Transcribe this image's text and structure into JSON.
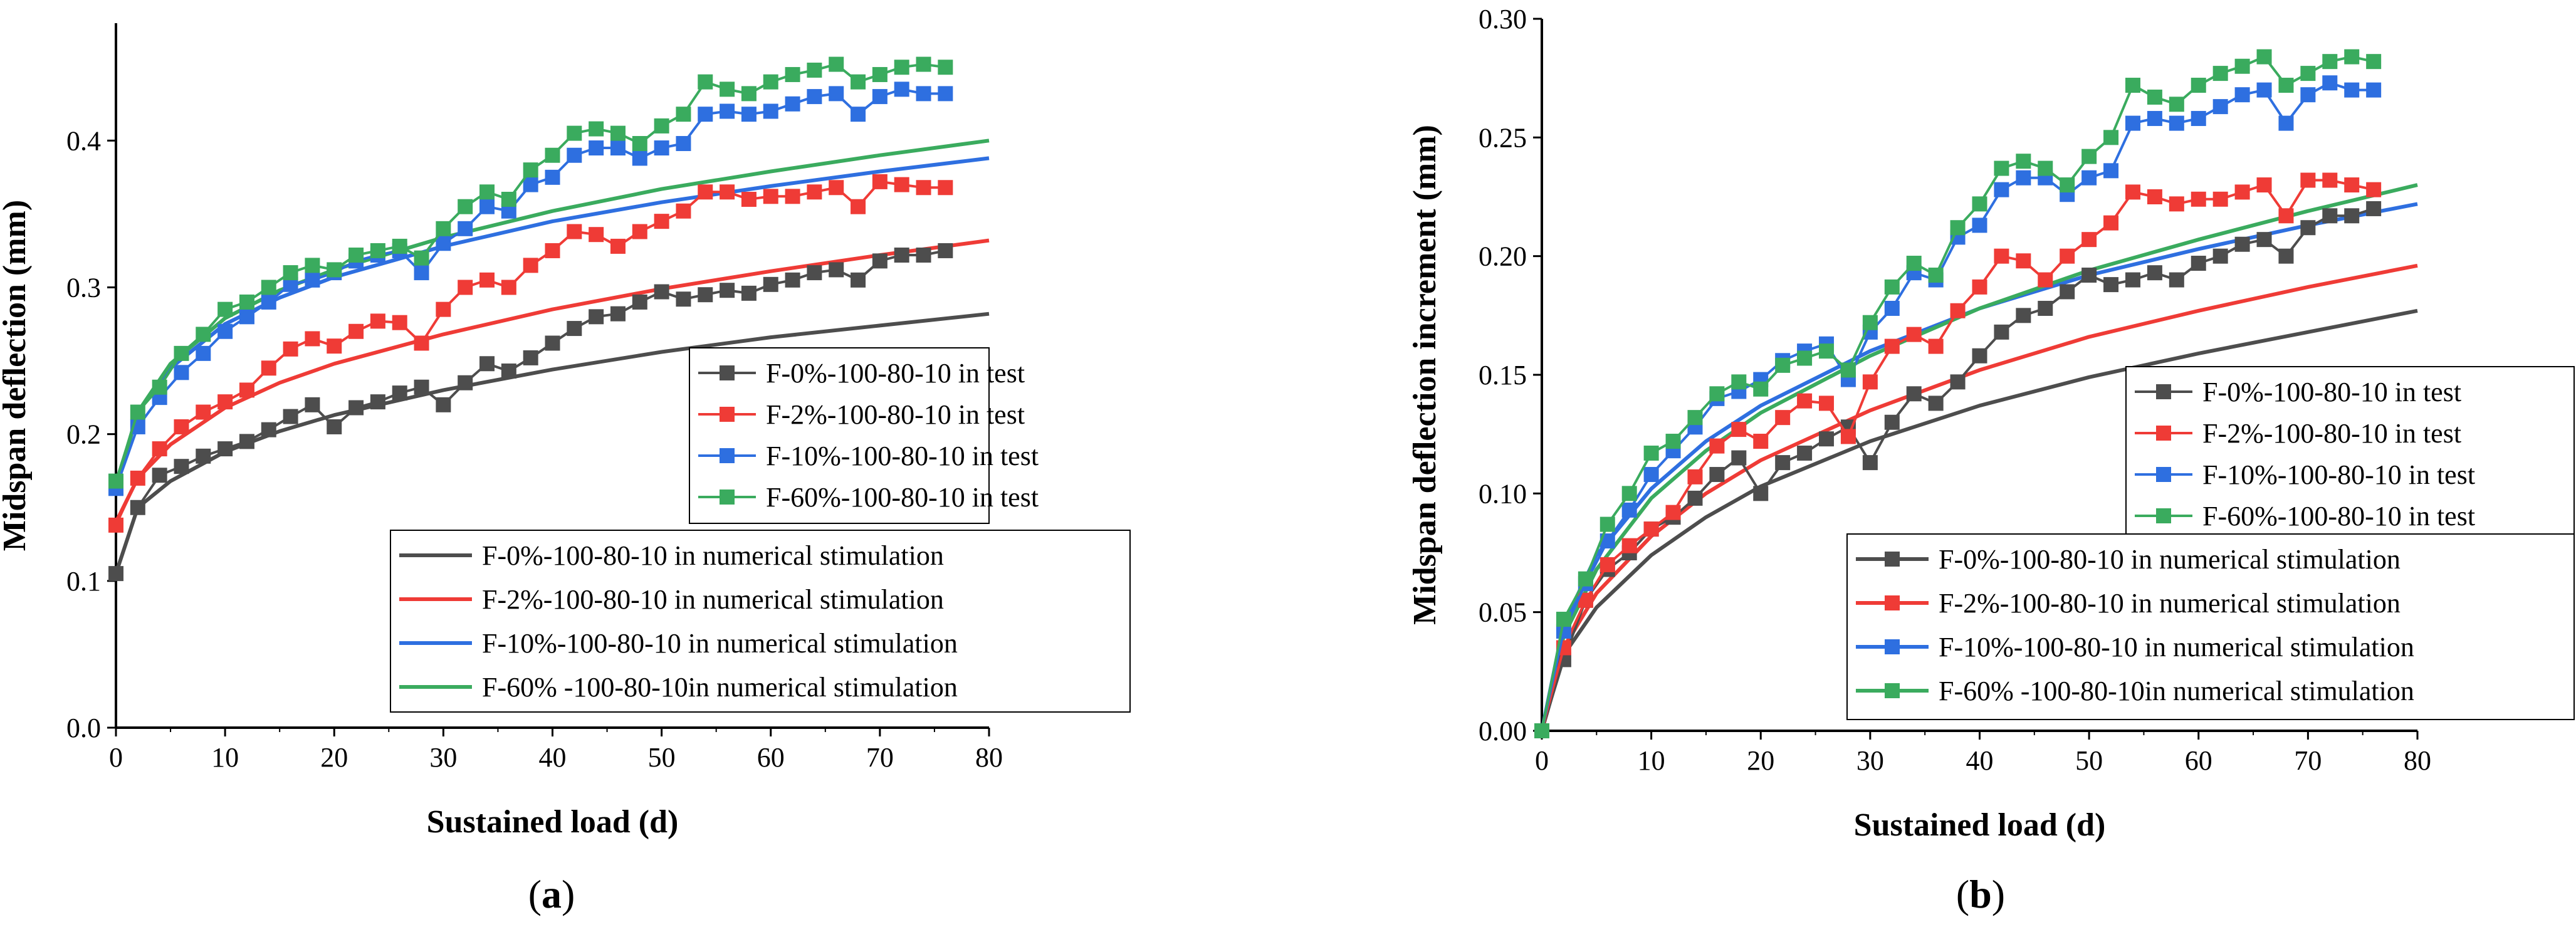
{
  "colors": {
    "F-0%": "#4d4d4d",
    "F-2%": "#ef3b36",
    "F-10%": "#2e6fe0",
    "F-60%": "#3aab5e"
  },
  "chart_data": [
    {
      "panel_label": "(a)",
      "panel_label_parts": [
        "(",
        "a",
        ")"
      ],
      "type": "scatter",
      "xlabel": "Sustained load  (d)",
      "ylabel": "Midspan deflection (mm)",
      "xlim": [
        0,
        80
      ],
      "ylim": [
        0,
        0.48
      ],
      "xticks": [
        0,
        10,
        20,
        30,
        40,
        50,
        60,
        70,
        80
      ],
      "xtick_labels": [
        "0",
        "10",
        "20",
        "30",
        "40",
        "50",
        "60",
        "70",
        "80"
      ],
      "yticks": [
        0.0,
        0.1,
        0.2,
        0.3,
        0.4
      ],
      "ytick_labels": [
        "0.0",
        "0.1",
        "0.2",
        "0.3",
        "0.4"
      ],
      "grid": false,
      "legend_test_placement": "right-middle",
      "legend_model_placement": "bottom-right",
      "test_series": [
        {
          "name": "F-0%-100-80-10 in test",
          "key": "F-0%",
          "marker": "square",
          "x": [
            0,
            2,
            4,
            6,
            8,
            10,
            12,
            14,
            16,
            18,
            20,
            22,
            24,
            26,
            28,
            30,
            32,
            34,
            36,
            38,
            40,
            42,
            44,
            46,
            48,
            50,
            52,
            54,
            56,
            58,
            60,
            62,
            64,
            66,
            68,
            70,
            72,
            74,
            76
          ],
          "y": [
            0.105,
            0.15,
            0.172,
            0.178,
            0.185,
            0.19,
            0.195,
            0.203,
            0.212,
            0.22,
            0.205,
            0.218,
            0.222,
            0.228,
            0.232,
            0.22,
            0.235,
            0.248,
            0.243,
            0.252,
            0.262,
            0.272,
            0.28,
            0.282,
            0.29,
            0.297,
            0.292,
            0.295,
            0.298,
            0.296,
            0.302,
            0.305,
            0.31,
            0.312,
            0.305,
            0.318,
            0.322,
            0.322,
            0.325
          ]
        },
        {
          "name": "F-2%-100-80-10 in test",
          "key": "F-2%",
          "marker": "square",
          "x": [
            0,
            2,
            4,
            6,
            8,
            10,
            12,
            14,
            16,
            18,
            20,
            22,
            24,
            26,
            28,
            30,
            32,
            34,
            36,
            38,
            40,
            42,
            44,
            46,
            48,
            50,
            52,
            54,
            56,
            58,
            60,
            62,
            64,
            66,
            68,
            70,
            72,
            74,
            76
          ],
          "y": [
            0.138,
            0.17,
            0.19,
            0.205,
            0.215,
            0.222,
            0.23,
            0.245,
            0.258,
            0.265,
            0.26,
            0.27,
            0.277,
            0.276,
            0.262,
            0.285,
            0.3,
            0.305,
            0.3,
            0.315,
            0.325,
            0.338,
            0.336,
            0.328,
            0.338,
            0.345,
            0.352,
            0.365,
            0.365,
            0.36,
            0.362,
            0.362,
            0.365,
            0.368,
            0.355,
            0.372,
            0.37,
            0.368,
            0.368
          ]
        },
        {
          "name": "F-10%-100-80-10 in test",
          "key": "F-10%",
          "marker": "square",
          "x": [
            0,
            2,
            4,
            6,
            8,
            10,
            12,
            14,
            16,
            18,
            20,
            22,
            24,
            26,
            28,
            30,
            32,
            34,
            36,
            38,
            40,
            42,
            44,
            46,
            48,
            50,
            52,
            54,
            56,
            58,
            60,
            62,
            64,
            66,
            68,
            70,
            72,
            74,
            76
          ],
          "y": [
            0.163,
            0.205,
            0.225,
            0.242,
            0.255,
            0.27,
            0.28,
            0.29,
            0.302,
            0.305,
            0.31,
            0.318,
            0.322,
            0.325,
            0.31,
            0.33,
            0.34,
            0.355,
            0.352,
            0.37,
            0.375,
            0.39,
            0.395,
            0.395,
            0.388,
            0.395,
            0.398,
            0.418,
            0.42,
            0.418,
            0.42,
            0.425,
            0.43,
            0.432,
            0.418,
            0.43,
            0.435,
            0.432,
            0.432
          ]
        },
        {
          "name": "F-60%-100-80-10 in test",
          "key": "F-60%",
          "marker": "square",
          "x": [
            0,
            2,
            4,
            6,
            8,
            10,
            12,
            14,
            16,
            18,
            20,
            22,
            24,
            26,
            28,
            30,
            32,
            34,
            36,
            38,
            40,
            42,
            44,
            46,
            48,
            50,
            52,
            54,
            56,
            58,
            60,
            62,
            64,
            66,
            68,
            70,
            72,
            74,
            76
          ],
          "y": [
            0.168,
            0.215,
            0.232,
            0.255,
            0.268,
            0.285,
            0.29,
            0.3,
            0.31,
            0.315,
            0.312,
            0.322,
            0.325,
            0.328,
            0.32,
            0.34,
            0.355,
            0.365,
            0.36,
            0.38,
            0.39,
            0.405,
            0.408,
            0.405,
            0.398,
            0.41,
            0.418,
            0.44,
            0.435,
            0.432,
            0.44,
            0.445,
            0.448,
            0.452,
            0.44,
            0.445,
            0.45,
            0.452,
            0.45
          ]
        }
      ],
      "model_series": [
        {
          "name": "F-0%-100-80-10  in numerical stimulation",
          "key": "F-0%",
          "x": [
            0,
            2,
            5,
            10,
            15,
            20,
            30,
            40,
            50,
            60,
            70,
            80
          ],
          "y": [
            0.105,
            0.15,
            0.168,
            0.188,
            0.202,
            0.213,
            0.23,
            0.244,
            0.256,
            0.266,
            0.274,
            0.282
          ]
        },
        {
          "name": "F-2%-100-80-10 in numerical stimulation",
          "key": "F-2%",
          "x": [
            0,
            2,
            5,
            10,
            15,
            20,
            30,
            40,
            50,
            60,
            70,
            80
          ],
          "y": [
            0.14,
            0.17,
            0.193,
            0.218,
            0.235,
            0.248,
            0.268,
            0.285,
            0.299,
            0.311,
            0.322,
            0.332
          ]
        },
        {
          "name": "F-10%-100-80-10 in numerical stimulation",
          "key": "F-10%",
          "x": [
            0,
            2,
            5,
            10,
            15,
            20,
            30,
            40,
            50,
            60,
            70,
            80
          ],
          "y": [
            0.162,
            0.215,
            0.245,
            0.275,
            0.293,
            0.307,
            0.328,
            0.345,
            0.358,
            0.369,
            0.379,
            0.388
          ]
        },
        {
          "name": "F-60% -100-80-10in numerical stimulation",
          "key": "F-60%",
          "x": [
            0,
            2,
            5,
            10,
            15,
            20,
            30,
            40,
            50,
            60,
            70,
            80
          ],
          "y": [
            0.165,
            0.215,
            0.248,
            0.279,
            0.298,
            0.312,
            0.334,
            0.352,
            0.367,
            0.379,
            0.39,
            0.4
          ]
        }
      ]
    },
    {
      "panel_label": "(b)",
      "panel_label_parts": [
        "(",
        "b",
        ")"
      ],
      "type": "scatter",
      "xlabel": "Sustained load  (d)",
      "ylabel": "Midspan deflection increment (mm)",
      "xlim": [
        0,
        80
      ],
      "ylim": [
        0,
        0.3
      ],
      "xticks": [
        0,
        10,
        20,
        30,
        40,
        50,
        60,
        70,
        80
      ],
      "xtick_labels": [
        "0",
        "10",
        "20",
        "30",
        "40",
        "50",
        "60",
        "70",
        "80"
      ],
      "yticks": [
        0.0,
        0.05,
        0.1,
        0.15,
        0.2,
        0.25,
        0.3
      ],
      "ytick_labels": [
        "0.00",
        "0.05",
        "0.10",
        "0.15",
        "0.20",
        "0.25",
        "0.30"
      ],
      "grid": false,
      "legend_test_placement": "right-middle",
      "legend_model_placement": "bottom-right",
      "test_series": [
        {
          "name": "F-0%-100-80-10 in test",
          "key": "F-0%",
          "marker": "square",
          "x": [
            0,
            2,
            4,
            6,
            8,
            10,
            12,
            14,
            16,
            18,
            20,
            22,
            24,
            26,
            28,
            30,
            32,
            34,
            36,
            38,
            40,
            42,
            44,
            46,
            48,
            50,
            52,
            54,
            56,
            58,
            60,
            62,
            64,
            66,
            68,
            70,
            72,
            74,
            76
          ],
          "y": [
            0.0,
            0.03,
            0.055,
            0.068,
            0.075,
            0.085,
            0.09,
            0.098,
            0.108,
            0.115,
            0.1,
            0.113,
            0.117,
            0.123,
            0.128,
            0.113,
            0.13,
            0.142,
            0.138,
            0.147,
            0.158,
            0.168,
            0.175,
            0.178,
            0.185,
            0.192,
            0.188,
            0.19,
            0.193,
            0.19,
            0.197,
            0.2,
            0.205,
            0.207,
            0.2,
            0.212,
            0.217,
            0.217,
            0.22
          ]
        },
        {
          "name": "F-2%-100-80-10 in test",
          "key": "F-2%",
          "marker": "square",
          "x": [
            0,
            2,
            4,
            6,
            8,
            10,
            12,
            14,
            16,
            18,
            20,
            22,
            24,
            26,
            28,
            30,
            32,
            34,
            36,
            38,
            40,
            42,
            44,
            46,
            48,
            50,
            52,
            54,
            56,
            58,
            60,
            62,
            64,
            66,
            68,
            70,
            72,
            74,
            76
          ],
          "y": [
            0.0,
            0.035,
            0.055,
            0.07,
            0.078,
            0.085,
            0.092,
            0.107,
            0.12,
            0.127,
            0.122,
            0.132,
            0.139,
            0.138,
            0.124,
            0.147,
            0.162,
            0.167,
            0.162,
            0.177,
            0.187,
            0.2,
            0.198,
            0.19,
            0.2,
            0.207,
            0.214,
            0.227,
            0.225,
            0.222,
            0.224,
            0.224,
            0.227,
            0.23,
            0.217,
            0.232,
            0.232,
            0.23,
            0.228
          ]
        },
        {
          "name": "F-10%-100-80-10 in test",
          "key": "F-10%",
          "marker": "square",
          "x": [
            0,
            2,
            4,
            6,
            8,
            10,
            12,
            14,
            16,
            18,
            20,
            22,
            24,
            26,
            28,
            30,
            32,
            34,
            36,
            38,
            40,
            42,
            44,
            46,
            48,
            50,
            52,
            54,
            56,
            58,
            60,
            62,
            64,
            66,
            68,
            70,
            72,
            74,
            76
          ],
          "y": [
            0.0,
            0.042,
            0.062,
            0.08,
            0.093,
            0.108,
            0.118,
            0.128,
            0.14,
            0.143,
            0.148,
            0.156,
            0.16,
            0.163,
            0.148,
            0.168,
            0.178,
            0.193,
            0.19,
            0.208,
            0.213,
            0.228,
            0.233,
            0.233,
            0.226,
            0.233,
            0.236,
            0.256,
            0.258,
            0.256,
            0.258,
            0.263,
            0.268,
            0.27,
            0.256,
            0.268,
            0.273,
            0.27,
            0.27
          ]
        },
        {
          "name": "F-60%-100-80-10 in test",
          "key": "F-60%",
          "marker": "square",
          "x": [
            0,
            2,
            4,
            6,
            8,
            10,
            12,
            14,
            16,
            18,
            20,
            22,
            24,
            26,
            28,
            30,
            32,
            34,
            36,
            38,
            40,
            42,
            44,
            46,
            48,
            50,
            52,
            54,
            56,
            58,
            60,
            62,
            64,
            66,
            68,
            70,
            72,
            74,
            76
          ],
          "y": [
            0.0,
            0.047,
            0.064,
            0.087,
            0.1,
            0.117,
            0.122,
            0.132,
            0.142,
            0.147,
            0.144,
            0.154,
            0.157,
            0.16,
            0.152,
            0.172,
            0.187,
            0.197,
            0.192,
            0.212,
            0.222,
            0.237,
            0.24,
            0.237,
            0.23,
            0.242,
            0.25,
            0.272,
            0.267,
            0.264,
            0.272,
            0.277,
            0.28,
            0.284,
            0.272,
            0.277,
            0.282,
            0.284,
            0.282
          ]
        }
      ],
      "model_series": [
        {
          "name": "F-0%-100-80-10  in numerical stimulation",
          "key": "F-0%",
          "x": [
            0,
            2,
            5,
            10,
            15,
            20,
            30,
            40,
            50,
            60,
            70,
            80
          ],
          "y": [
            0.0,
            0.032,
            0.052,
            0.074,
            0.09,
            0.103,
            0.122,
            0.137,
            0.149,
            0.159,
            0.168,
            0.177
          ]
        },
        {
          "name": "F-2%-100-80-10 in numerical stimulation",
          "key": "F-2%",
          "x": [
            0,
            2,
            5,
            10,
            15,
            20,
            30,
            40,
            50,
            60,
            70,
            80
          ],
          "y": [
            0.0,
            0.035,
            0.058,
            0.082,
            0.1,
            0.114,
            0.135,
            0.152,
            0.166,
            0.177,
            0.187,
            0.196
          ]
        },
        {
          "name": "F-10%-100-80-10 in numerical stimulation",
          "key": "F-10%",
          "x": [
            0,
            2,
            5,
            10,
            15,
            20,
            30,
            40,
            50,
            60,
            70,
            80
          ],
          "y": [
            0.0,
            0.045,
            0.074,
            0.102,
            0.122,
            0.137,
            0.16,
            0.178,
            0.192,
            0.203,
            0.213,
            0.222
          ]
        },
        {
          "name": "F-60% -100-80-10in numerical stimulation",
          "key": "F-60%",
          "x": [
            0,
            2,
            5,
            10,
            15,
            20,
            30,
            40,
            50,
            60,
            70,
            80
          ],
          "y": [
            0.0,
            0.04,
            0.068,
            0.098,
            0.118,
            0.134,
            0.158,
            0.178,
            0.194,
            0.207,
            0.219,
            0.23
          ]
        }
      ]
    }
  ]
}
